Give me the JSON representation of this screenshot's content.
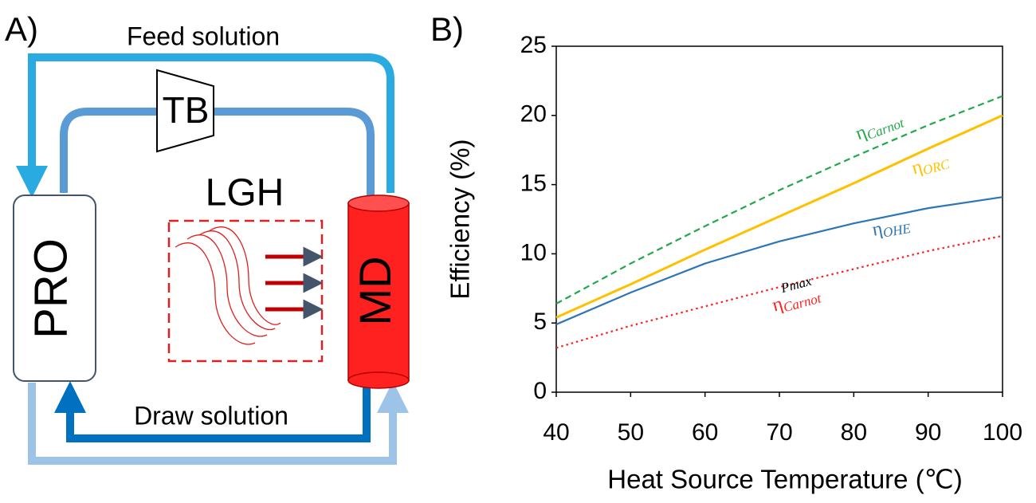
{
  "panel_a": {
    "label": "A)",
    "feed": "Feed solution",
    "turbine": "TB",
    "heat": "LGH",
    "pro": "PRO",
    "md": "MD",
    "draw": "Draw solution"
  },
  "chart_data": {
    "type": "line",
    "panel_label": "B)",
    "x_label": "Heat Source Temperature (℃)",
    "y_label": "Efficiency (%)",
    "x": [
      40,
      50,
      60,
      70,
      80,
      90,
      100
    ],
    "xlim": [
      40,
      100
    ],
    "xticks": [
      40,
      50,
      60,
      70,
      80,
      90,
      100
    ],
    "ylim": [
      0,
      25
    ],
    "yticks": [
      0,
      5,
      10,
      15,
      20,
      25
    ],
    "series": [
      {
        "name": "η",
        "subscript": "Carnot",
        "color": "#22a84a",
        "style": "dashed",
        "values": [
          6.4,
          9.3,
          12.0,
          14.6,
          17.0,
          19.3,
          21.4
        ]
      },
      {
        "name": "η",
        "subscript": "ORC",
        "color": "#ffc000",
        "style": "solid",
        "values": [
          5.4,
          7.8,
          10.3,
          12.7,
          15.1,
          17.6,
          20.0
        ]
      },
      {
        "name": "η",
        "subscript": "OHE",
        "color": "#2e75b6",
        "style": "solid",
        "values": [
          4.9,
          7.2,
          9.3,
          10.9,
          12.2,
          13.3,
          14.1
        ]
      },
      {
        "name": "η",
        "subscript": "Carnot",
        "superscript": "Pmax",
        "color": "#ff2020",
        "style": "dotted",
        "values": [
          3.2,
          4.8,
          6.2,
          7.6,
          8.9,
          10.2,
          11.3
        ]
      }
    ]
  }
}
